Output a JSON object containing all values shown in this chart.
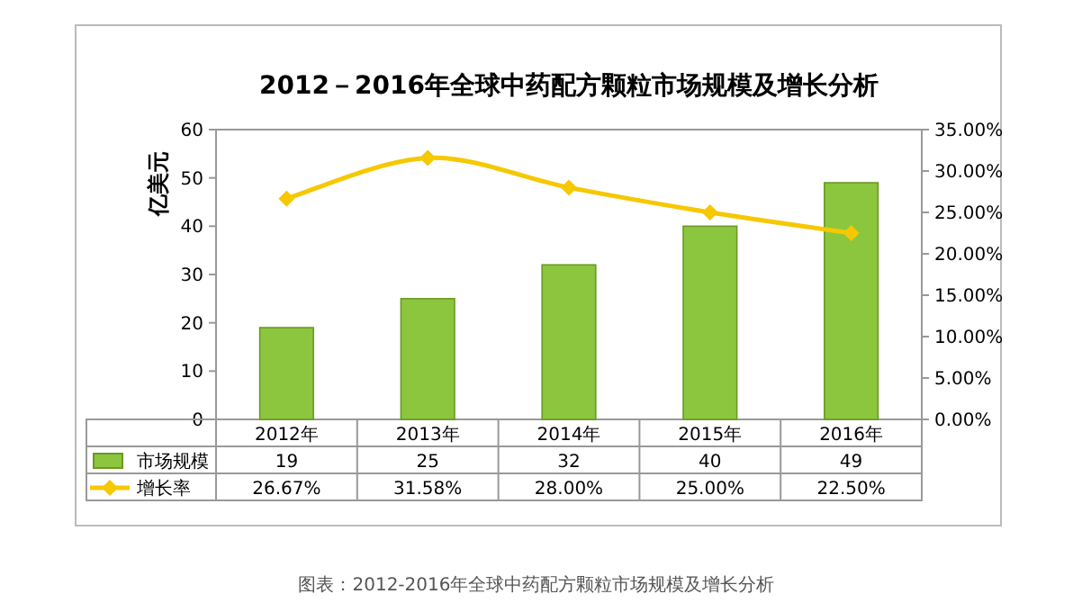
{
  "chart_data": {
    "type": "bar",
    "title": "2012－2016年全球中药配方颗粒市场规模及增长分析",
    "ylabel": "亿美元",
    "categories": [
      "2012年",
      "2013年",
      "2014年",
      "2015年",
      "2016年"
    ],
    "series": [
      {
        "name": "市场规模",
        "color": "#8cc63f",
        "values": [
          19,
          25,
          32,
          40,
          49
        ],
        "value_labels": [
          "19",
          "25",
          "32",
          "40",
          "49"
        ]
      },
      {
        "name": "增长率",
        "type": "line",
        "axis": "y2",
        "color": "#f5c800",
        "marker": "diamond",
        "values": [
          26.67,
          31.58,
          28.0,
          25.0,
          22.5
        ],
        "value_labels": [
          "26.67%",
          "31.58%",
          "28.00%",
          "25.00%",
          "22.50%"
        ]
      }
    ],
    "ylim": [
      0,
      60
    ],
    "yticks": [
      0,
      10,
      20,
      30,
      40,
      50,
      60
    ],
    "y2lim": [
      0,
      35
    ],
    "y2ticks": [
      {
        "value": 0,
        "label": "0.00%"
      },
      {
        "value": 5,
        "label": "5.00%"
      },
      {
        "value": 10,
        "label": "10.00%"
      },
      {
        "value": 15,
        "label": "15.00%"
      },
      {
        "value": 20,
        "label": "20.00%"
      },
      {
        "value": 25,
        "label": "25.00%"
      },
      {
        "value": 30,
        "label": "30.00%"
      },
      {
        "value": 35,
        "label": "35.00%"
      }
    ],
    "legend": "bottom left",
    "annotations": [
      "图表：2012-2016年全球中药配方颗粒市场规模及增长分析"
    ]
  }
}
